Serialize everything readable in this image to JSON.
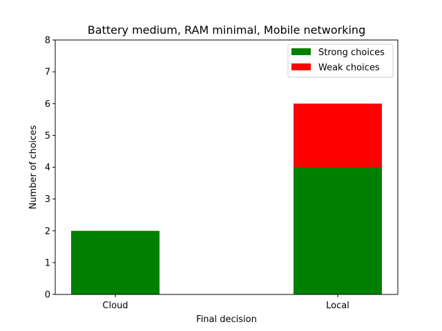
{
  "chart_data": {
    "type": "bar",
    "stacked": true,
    "title": "Battery medium, RAM minimal, Mobile networking",
    "xlabel": "Final decision",
    "ylabel": "Number of choices",
    "categories": [
      "Cloud",
      "Local"
    ],
    "series": [
      {
        "name": "Strong choices",
        "values": [
          2,
          4
        ],
        "color": "#008000"
      },
      {
        "name": "Weak choices",
        "values": [
          0,
          2
        ],
        "color": "#ff0000"
      }
    ],
    "ylim": [
      0,
      8
    ],
    "yticks": [
      "0",
      "1",
      "2",
      "3",
      "4",
      "5",
      "6",
      "7",
      "8"
    ],
    "grid": false,
    "legend_position": "top-right"
  }
}
